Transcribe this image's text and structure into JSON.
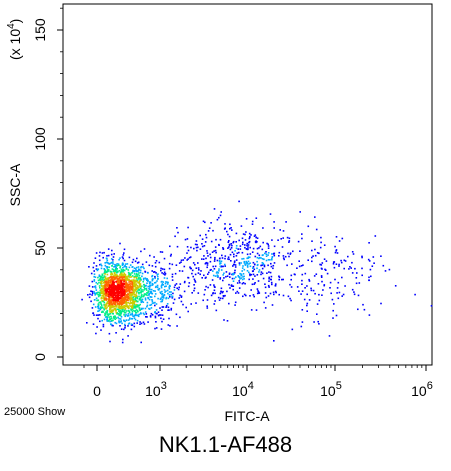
{
  "chart_data": {
    "type": "scatter",
    "plot_style": "density dot plot",
    "title": "NK1.1-AF488",
    "xlabel": "FITC-A",
    "ylabel": "SSC-A",
    "y_multiplier_label": "(x 10",
    "y_multiplier_exponent": "4",
    "y_multiplier_close": ")",
    "event_count_label": "25000 Show",
    "x_scale": "biexponential (linear near 0, log above)",
    "y_scale": "linear",
    "xlim": [
      -300,
      1000000
    ],
    "ylim": [
      -3,
      160
    ],
    "x_ticks": [
      {
        "value": 0,
        "base": "0",
        "exp": ""
      },
      {
        "value": 1000,
        "base": "10",
        "exp": "3"
      },
      {
        "value": 10000,
        "base": "10",
        "exp": "4"
      },
      {
        "value": 100000,
        "base": "10",
        "exp": "5"
      },
      {
        "value": 1000000,
        "base": "10",
        "exp": "6"
      }
    ],
    "y_ticks": [
      {
        "value": 0,
        "label": "0"
      },
      {
        "value": 50,
        "label": "50"
      },
      {
        "value": 100,
        "label": "100"
      },
      {
        "value": 150,
        "label": "150"
      }
    ],
    "color_scale": [
      "#0000ff",
      "#00aaff",
      "#00ee88",
      "#cccc00",
      "#ff6600",
      "#ff0000"
    ],
    "populations": [
      {
        "name_hint": "main",
        "x_center": 350,
        "y_center": 30,
        "x_spread_log": 0.28,
        "y_spread": 7,
        "weight": 0.72
      },
      {
        "name_hint": "high",
        "x_center": 7000,
        "y_center": 43,
        "x_spread_log": 0.35,
        "y_spread": 9,
        "weight": 0.2
      },
      {
        "name_hint": "sparse",
        "x_center": 60000,
        "y_center": 38,
        "x_spread_log": 0.45,
        "y_spread": 12,
        "weight": 0.08
      }
    ],
    "events_shown": 25000,
    "grid": false
  }
}
